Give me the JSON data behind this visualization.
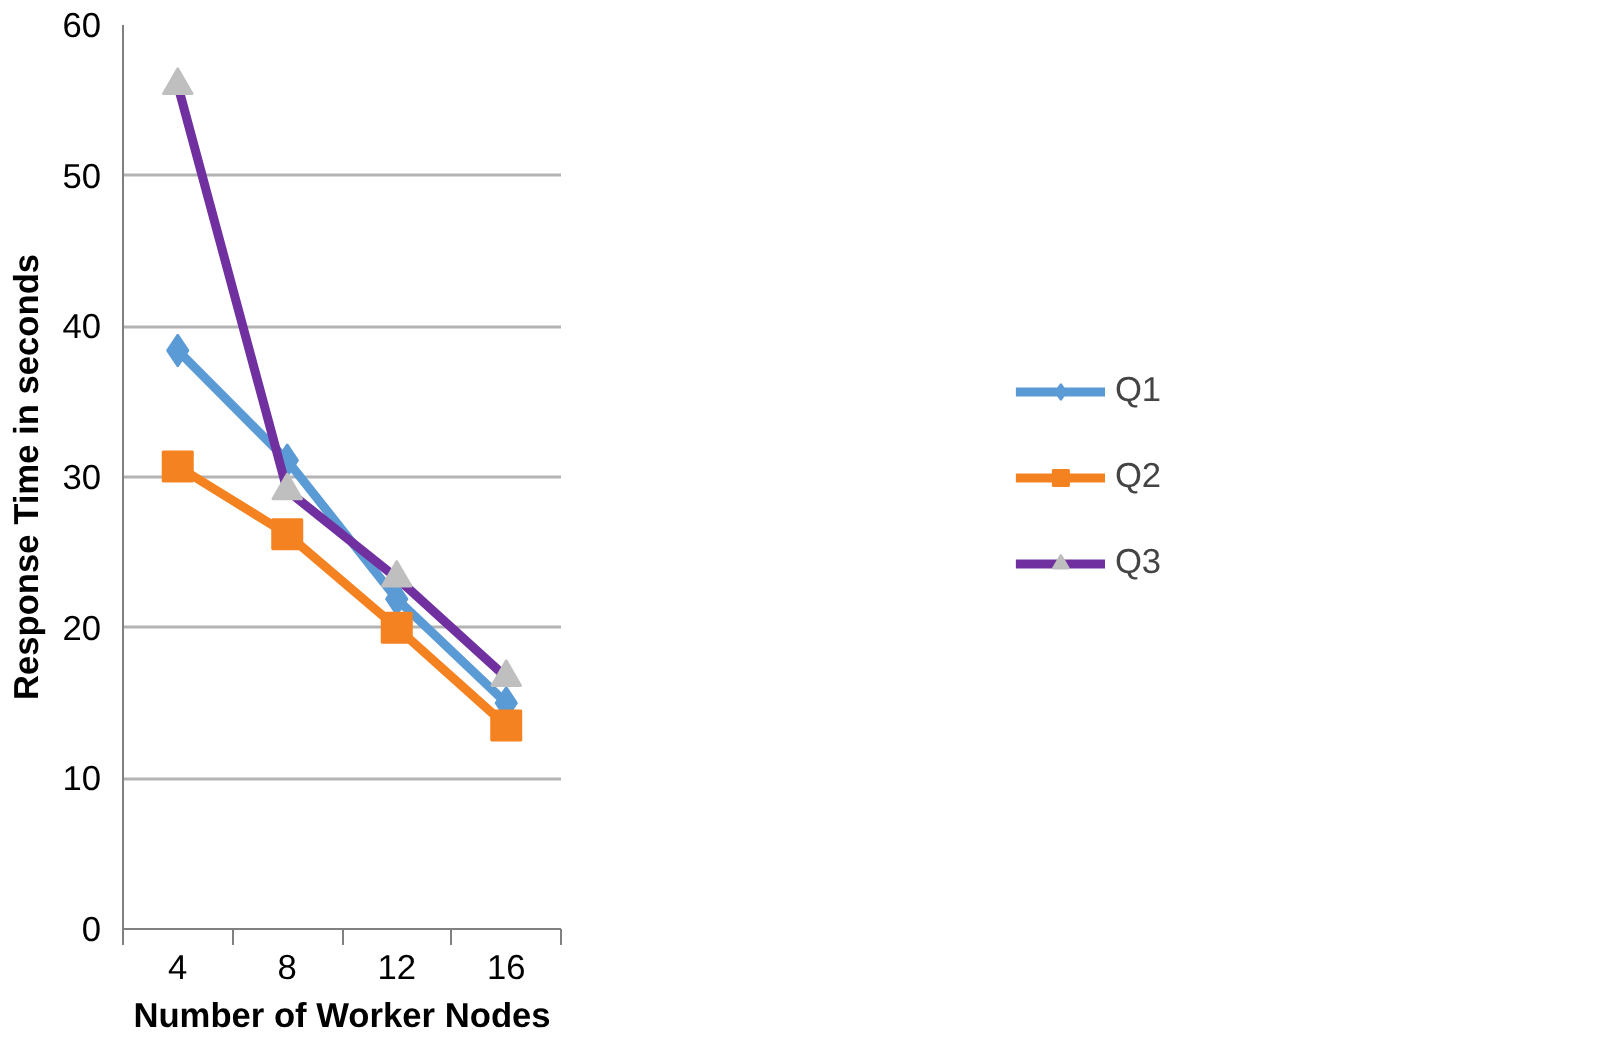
{
  "chart_data": {
    "type": "line",
    "xlabel": "Number of Worker Nodes",
    "ylabel": "Response Time in seconds",
    "categories": [
      "4",
      "8",
      "12",
      "16"
    ],
    "series": [
      {
        "name": "Q1",
        "color": "#5b9bd5",
        "marker": "diamond",
        "values": [
          38.4,
          31.1,
          21.9,
          15.0
        ]
      },
      {
        "name": "Q2",
        "color": "#f58220",
        "marker": "square",
        "values": [
          30.7,
          26.2,
          20.0,
          13.5
        ]
      },
      {
        "name": "Q3",
        "color": "#7030a0",
        "colors": [
          "#bfbfbf",
          "#bfbfbf",
          "#bfbfbf",
          "#bfbfbf"
        ],
        "marker": "triangle",
        "values": [
          56.0,
          29.1,
          23.3,
          16.7
        ]
      }
    ],
    "ylim": [
      0,
      60
    ],
    "yticks": [
      0,
      10,
      20,
      30,
      40,
      50,
      60
    ],
    "grid": "y",
    "legend": "right",
    "line_style": "solid"
  }
}
